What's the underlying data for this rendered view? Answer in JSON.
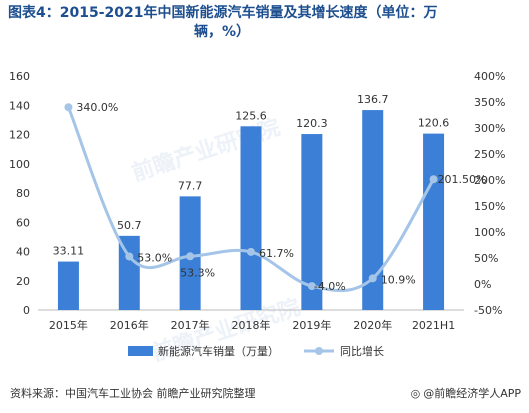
{
  "title_line1": "图表4：2015-2021年中国新能源汽车销量及其增长速度（单位：万",
  "title_line2": "辆，%）",
  "source": "资料来源：中国汽车工业协会 前瞻产业研究院整理",
  "brand": "@前瞻经济学人APP",
  "brand_icon": "globe-icon",
  "watermark": "前瞻产业研究院",
  "chart_data": {
    "type": "bar",
    "categories": [
      "2015年",
      "2016年",
      "2017年",
      "2018年",
      "2019年",
      "2020年",
      "2021H1"
    ],
    "series": [
      {
        "name": "新能源汽车销量（万量）",
        "type": "bar",
        "axis": "left",
        "values": [
          33.11,
          50.7,
          77.7,
          125.6,
          120.3,
          136.7,
          120.6
        ],
        "labels": [
          "33.11",
          "50.7",
          "77.7",
          "125.6",
          "120.3",
          "136.7",
          "120.6"
        ],
        "color": "#3b7fd6"
      },
      {
        "name": "同比增长",
        "type": "line",
        "axis": "right",
        "values": [
          340.0,
          53.0,
          53.3,
          61.7,
          -4.0,
          10.9,
          201.5
        ],
        "labels": [
          "340.0%",
          "53.0%",
          "53.3%",
          "61.7%",
          "-4.0%",
          "10.9%",
          "201.50%"
        ],
        "color": "#a5c5e8"
      }
    ],
    "y_left": {
      "range": [
        0,
        160
      ],
      "ticks": [
        "0",
        "20",
        "40",
        "60",
        "80",
        "100",
        "120",
        "140",
        "160"
      ]
    },
    "y_right": {
      "range": [
        -50,
        400
      ],
      "ticks": [
        "-50%",
        "0%",
        "50%",
        "100%",
        "150%",
        "200%",
        "250%",
        "300%",
        "350%",
        "400%"
      ]
    },
    "grid": false,
    "legend_position": "bottom"
  }
}
